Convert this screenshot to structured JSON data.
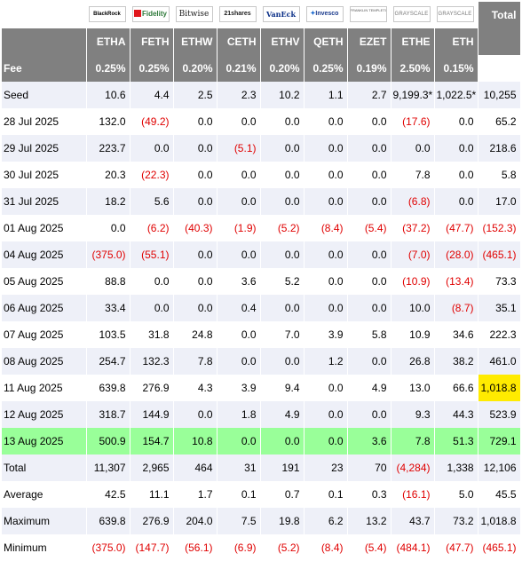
{
  "issuers": [
    {
      "name": "BlackRock",
      "logo": "blackrock-logo"
    },
    {
      "name": "Fidelity",
      "logo": "fidelity-logo"
    },
    {
      "name": "Bitwise",
      "logo": "bitwise-logo"
    },
    {
      "name": "21shares",
      "logo": "21shares-logo"
    },
    {
      "name": "VanEck",
      "logo": "vaneck-logo"
    },
    {
      "name": "Invesco",
      "logo": "invesco-logo"
    },
    {
      "name": "FRANKLIN TEMPLETON",
      "logo": "franklin-templeton-logo"
    },
    {
      "name": "GRAYSCALE",
      "logo": "grayscale-logo"
    },
    {
      "name": "GRAYSCALE",
      "logo": "grayscale-logo"
    }
  ],
  "total_header": "Total",
  "tickers": [
    "ETHA",
    "FETH",
    "ETHW",
    "CETH",
    "ETHV",
    "QETH",
    "EZET",
    "ETHE",
    "ETH"
  ],
  "fee_label": "Fee",
  "fees": [
    "0.25%",
    "0.25%",
    "0.20%",
    "0.21%",
    "0.20%",
    "0.25%",
    "0.19%",
    "2.50%",
    "0.15%"
  ],
  "rows": [
    {
      "label": "Seed",
      "values": [
        "10.6",
        "4.4",
        "2.5",
        "2.3",
        "10.2",
        "1.1",
        "2.7",
        "9,199.3*",
        "1,022.5*",
        "10,255"
      ]
    },
    {
      "label": "28 Jul 2025",
      "values": [
        "132.0",
        "(49.2)",
        "0.0",
        "0.0",
        "0.0",
        "0.0",
        "0.0",
        "(17.6)",
        "0.0",
        "65.2"
      ]
    },
    {
      "label": "29 Jul 2025",
      "values": [
        "223.7",
        "0.0",
        "0.0",
        "(5.1)",
        "0.0",
        "0.0",
        "0.0",
        "0.0",
        "0.0",
        "218.6"
      ]
    },
    {
      "label": "30 Jul 2025",
      "values": [
        "20.3",
        "(22.3)",
        "0.0",
        "0.0",
        "0.0",
        "0.0",
        "0.0",
        "7.8",
        "0.0",
        "5.8"
      ]
    },
    {
      "label": "31 Jul 2025",
      "values": [
        "18.2",
        "5.6",
        "0.0",
        "0.0",
        "0.0",
        "0.0",
        "0.0",
        "(6.8)",
        "0.0",
        "17.0"
      ]
    },
    {
      "label": "01 Aug 2025",
      "values": [
        "0.0",
        "(6.2)",
        "(40.3)",
        "(1.9)",
        "(5.2)",
        "(8.4)",
        "(5.4)",
        "(37.2)",
        "(47.7)",
        "(152.3)"
      ]
    },
    {
      "label": "04 Aug 2025",
      "values": [
        "(375.0)",
        "(55.1)",
        "0.0",
        "0.0",
        "0.0",
        "0.0",
        "0.0",
        "(7.0)",
        "(28.0)",
        "(465.1)"
      ]
    },
    {
      "label": "05 Aug 2025",
      "values": [
        "88.8",
        "0.0",
        "0.0",
        "3.6",
        "5.2",
        "0.0",
        "0.0",
        "(10.9)",
        "(13.4)",
        "73.3"
      ]
    },
    {
      "label": "06 Aug 2025",
      "values": [
        "33.4",
        "0.0",
        "0.0",
        "0.4",
        "0.0",
        "0.0",
        "0.0",
        "10.0",
        "(8.7)",
        "35.1"
      ]
    },
    {
      "label": "07 Aug 2025",
      "values": [
        "103.5",
        "31.8",
        "24.8",
        "0.0",
        "7.0",
        "3.9",
        "5.8",
        "10.9",
        "34.6",
        "222.3"
      ]
    },
    {
      "label": "08 Aug 2025",
      "values": [
        "254.7",
        "132.3",
        "7.8",
        "0.0",
        "0.0",
        "1.2",
        "0.0",
        "26.8",
        "38.2",
        "461.0"
      ]
    },
    {
      "label": "11 Aug 2025",
      "values": [
        "639.8",
        "276.9",
        "4.3",
        "3.9",
        "9.4",
        "0.0",
        "4.9",
        "13.0",
        "66.6",
        "1,018.8"
      ],
      "highlight_total": true
    },
    {
      "label": "12 Aug 2025",
      "values": [
        "318.7",
        "144.9",
        "0.0",
        "1.8",
        "4.9",
        "0.0",
        "0.0",
        "9.3",
        "44.3",
        "523.9"
      ]
    },
    {
      "label": "13 Aug 2025",
      "values": [
        "500.9",
        "154.7",
        "10.8",
        "0.0",
        "0.0",
        "0.0",
        "3.6",
        "7.8",
        "51.3",
        "729.1"
      ],
      "highlight_row": true
    },
    {
      "label": "Total",
      "values": [
        "11,307",
        "2,965",
        "464",
        "31",
        "191",
        "23",
        "70",
        "(4,284)",
        "1,338",
        "12,106"
      ]
    },
    {
      "label": "Average",
      "values": [
        "42.5",
        "11.1",
        "1.7",
        "0.1",
        "0.7",
        "0.1",
        "0.3",
        "(16.1)",
        "5.0",
        "45.5"
      ]
    },
    {
      "label": "Maximum",
      "values": [
        "639.8",
        "276.9",
        "204.0",
        "7.5",
        "19.8",
        "6.2",
        "13.2",
        "43.7",
        "73.2",
        "1,018.8"
      ]
    },
    {
      "label": "Minimum",
      "values": [
        "(375.0)",
        "(147.7)",
        "(56.1)",
        "(6.9)",
        "(5.2)",
        "(8.4)",
        "(5.4)",
        "(484.1)",
        "(47.7)",
        "(465.1)"
      ]
    }
  ],
  "colors": {
    "header_gray": "#808080",
    "row_alt": "#eef0f8",
    "negative": "#e00000",
    "highlight_row": "#99ff99",
    "highlight_cell": "#ffeb00"
  }
}
